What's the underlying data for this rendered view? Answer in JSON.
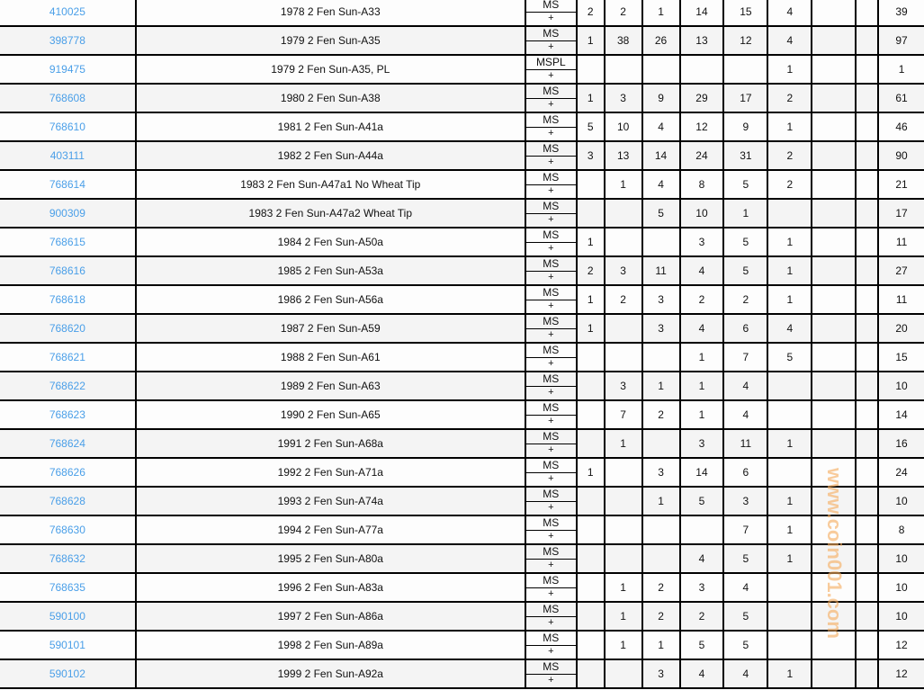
{
  "rows": [
    {
      "id": "410025",
      "desc": "1978 2 Fen Sun-A33",
      "grade": "MS",
      "plus": "+",
      "counts": [
        "2",
        "2",
        "1",
        "14",
        "15",
        "4",
        "",
        ""
      ],
      "total": "39"
    },
    {
      "id": "398778",
      "desc": "1979 2 Fen Sun-A35",
      "grade": "MS",
      "plus": "+",
      "counts": [
        "1",
        "38",
        "26",
        "13",
        "12",
        "4",
        "",
        ""
      ],
      "total": "97"
    },
    {
      "id": "919475",
      "desc": "1979 2 Fen Sun-A35, PL",
      "grade": "MSPL",
      "plus": "+",
      "counts": [
        "",
        "",
        "",
        "",
        "",
        "1",
        "",
        ""
      ],
      "total": "1"
    },
    {
      "id": "768608",
      "desc": "1980 2 Fen Sun-A38",
      "grade": "MS",
      "plus": "+",
      "counts": [
        "1",
        "3",
        "9",
        "29",
        "17",
        "2",
        "",
        ""
      ],
      "total": "61"
    },
    {
      "id": "768610",
      "desc": "1981 2 Fen Sun-A41a",
      "grade": "MS",
      "plus": "+",
      "counts": [
        "5",
        "10",
        "4",
        "12",
        "9",
        "1",
        "",
        ""
      ],
      "total": "46"
    },
    {
      "id": "403111",
      "desc": "1982 2 Fen Sun-A44a",
      "grade": "MS",
      "plus": "+",
      "counts": [
        "3",
        "13",
        "14",
        "24",
        "31",
        "2",
        "",
        ""
      ],
      "total": "90"
    },
    {
      "id": "768614",
      "desc": "1983 2 Fen Sun-A47a1 No Wheat Tip",
      "grade": "MS",
      "plus": "+",
      "counts": [
        "",
        "1",
        "4",
        "8",
        "5",
        "2",
        "",
        ""
      ],
      "total": "21"
    },
    {
      "id": "900309",
      "desc": "1983 2 Fen Sun-A47a2 Wheat Tip",
      "grade": "MS",
      "plus": "+",
      "counts": [
        "",
        "",
        "5",
        "10",
        "1",
        "",
        "",
        ""
      ],
      "total": "17"
    },
    {
      "id": "768615",
      "desc": "1984 2 Fen Sun-A50a",
      "grade": "MS",
      "plus": "+",
      "counts": [
        "1",
        "",
        "",
        "3",
        "5",
        "1",
        "",
        ""
      ],
      "total": "11"
    },
    {
      "id": "768616",
      "desc": "1985 2 Fen Sun-A53a",
      "grade": "MS",
      "plus": "+",
      "counts": [
        "2",
        "3",
        "11",
        "4",
        "5",
        "1",
        "",
        ""
      ],
      "total": "27"
    },
    {
      "id": "768618",
      "desc": "1986 2 Fen Sun-A56a",
      "grade": "MS",
      "plus": "+",
      "counts": [
        "1",
        "2",
        "3",
        "2",
        "2",
        "1",
        "",
        ""
      ],
      "total": "11"
    },
    {
      "id": "768620",
      "desc": "1987 2 Fen Sun-A59",
      "grade": "MS",
      "plus": "+",
      "counts": [
        "1",
        "",
        "3",
        "4",
        "6",
        "4",
        "",
        ""
      ],
      "total": "20"
    },
    {
      "id": "768621",
      "desc": "1988 2 Fen Sun-A61",
      "grade": "MS",
      "plus": "+",
      "counts": [
        "",
        "",
        "",
        "1",
        "7",
        "5",
        "",
        ""
      ],
      "total": "15"
    },
    {
      "id": "768622",
      "desc": "1989 2 Fen Sun-A63",
      "grade": "MS",
      "plus": "+",
      "counts": [
        "",
        "3",
        "1",
        "1",
        "4",
        "",
        "",
        ""
      ],
      "total": "10"
    },
    {
      "id": "768623",
      "desc": "1990 2 Fen Sun-A65",
      "grade": "MS",
      "plus": "+",
      "counts": [
        "",
        "7",
        "2",
        "1",
        "4",
        "",
        "",
        ""
      ],
      "total": "14"
    },
    {
      "id": "768624",
      "desc": "1991 2 Fen Sun-A68a",
      "grade": "MS",
      "plus": "+",
      "counts": [
        "",
        "1",
        "",
        "3",
        "11",
        "1",
        "",
        ""
      ],
      "total": "16"
    },
    {
      "id": "768626",
      "desc": "1992 2 Fen Sun-A71a",
      "grade": "MS",
      "plus": "+",
      "counts": [
        "1",
        "",
        "3",
        "14",
        "6",
        "",
        "",
        ""
      ],
      "total": "24"
    },
    {
      "id": "768628",
      "desc": "1993 2 Fen Sun-A74a",
      "grade": "MS",
      "plus": "+",
      "counts": [
        "",
        "",
        "1",
        "5",
        "3",
        "1",
        "",
        ""
      ],
      "total": "10"
    },
    {
      "id": "768630",
      "desc": "1994 2 Fen Sun-A77a",
      "grade": "MS",
      "plus": "+",
      "counts": [
        "",
        "",
        "",
        "",
        "7",
        "1",
        "",
        ""
      ],
      "total": "8"
    },
    {
      "id": "768632",
      "desc": "1995 2 Fen Sun-A80a",
      "grade": "MS",
      "plus": "+",
      "counts": [
        "",
        "",
        "",
        "4",
        "5",
        "1",
        "",
        ""
      ],
      "total": "10"
    },
    {
      "id": "768635",
      "desc": "1996 2 Fen Sun-A83a",
      "grade": "MS",
      "plus": "+",
      "counts": [
        "",
        "1",
        "2",
        "3",
        "4",
        "",
        "",
        ""
      ],
      "total": "10"
    },
    {
      "id": "590100",
      "desc": "1997 2 Fen Sun-A86a",
      "grade": "MS",
      "plus": "+",
      "counts": [
        "",
        "1",
        "2",
        "2",
        "5",
        "",
        "",
        ""
      ],
      "total": "10"
    },
    {
      "id": "590101",
      "desc": "1998 2 Fen Sun-A89a",
      "grade": "MS",
      "plus": "+",
      "counts": [
        "",
        "1",
        "1",
        "5",
        "5",
        "",
        "",
        ""
      ],
      "total": "12"
    },
    {
      "id": "590102",
      "desc": "1999 2 Fen Sun-A92a",
      "grade": "MS",
      "plus": "+",
      "counts": [
        "",
        "",
        "3",
        "4",
        "4",
        "1",
        "",
        ""
      ],
      "total": "12"
    }
  ],
  "watermark": "www.coin001.com",
  "colors": {
    "link": "#4a9fe8",
    "row_alt": "#f4f4f4",
    "watermark": "#f5aa5a"
  }
}
